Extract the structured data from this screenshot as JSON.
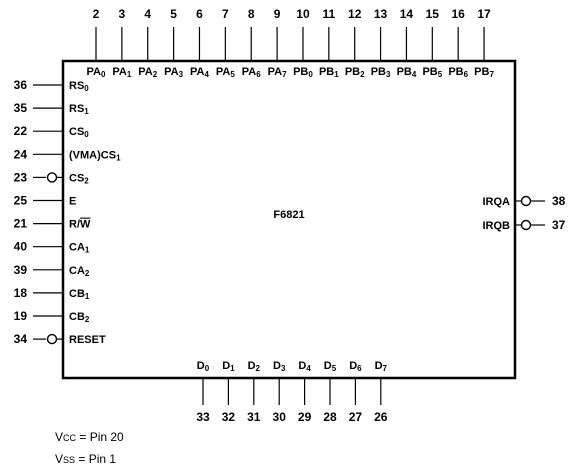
{
  "chip": {
    "name": "F6821"
  },
  "top_pins": [
    {
      "num": "2",
      "name": "PA",
      "sub": "0"
    },
    {
      "num": "3",
      "name": "PA",
      "sub": "1"
    },
    {
      "num": "4",
      "name": "PA",
      "sub": "2"
    },
    {
      "num": "5",
      "name": "PA",
      "sub": "3"
    },
    {
      "num": "6",
      "name": "PA",
      "sub": "4"
    },
    {
      "num": "7",
      "name": "PA",
      "sub": "5"
    },
    {
      "num": "8",
      "name": "PA",
      "sub": "6"
    },
    {
      "num": "9",
      "name": "PA",
      "sub": "7"
    },
    {
      "num": "10",
      "name": "PB",
      "sub": "0"
    },
    {
      "num": "11",
      "name": "PB",
      "sub": "1"
    },
    {
      "num": "12",
      "name": "PB",
      "sub": "2"
    },
    {
      "num": "13",
      "name": "PB",
      "sub": "3"
    },
    {
      "num": "14",
      "name": "PB",
      "sub": "4"
    },
    {
      "num": "15",
      "name": "PB",
      "sub": "5"
    },
    {
      "num": "16",
      "name": "PB",
      "sub": "6"
    },
    {
      "num": "17",
      "name": "PB",
      "sub": "7"
    }
  ],
  "left_pins": [
    {
      "num": "36",
      "name": "RS",
      "sub": "0",
      "bubble": false
    },
    {
      "num": "35",
      "name": "RS",
      "sub": "1",
      "bubble": false
    },
    {
      "num": "22",
      "name": "CS",
      "sub": "0",
      "bubble": false
    },
    {
      "num": "24",
      "name": "(VMA)CS",
      "sub": "1",
      "bubble": false
    },
    {
      "num": "23",
      "name": "CS",
      "sub": "2",
      "bubble": true
    },
    {
      "num": "25",
      "name": "E",
      "sub": "",
      "bubble": false
    },
    {
      "num": "21",
      "name": "R/",
      "over": "W",
      "sub": "",
      "bubble": false
    },
    {
      "num": "40",
      "name": "CA",
      "sub": "1",
      "bubble": false
    },
    {
      "num": "39",
      "name": "CA",
      "sub": "2",
      "bubble": false
    },
    {
      "num": "18",
      "name": "CB",
      "sub": "1",
      "bubble": false
    },
    {
      "num": "19",
      "name": "CB",
      "sub": "2",
      "bubble": false
    },
    {
      "num": "34",
      "name": "RESET",
      "sub": "",
      "bubble": true
    }
  ],
  "right_pins": [
    {
      "num": "38",
      "name": "IRQA",
      "bubble": true
    },
    {
      "num": "37",
      "name": "IRQB",
      "bubble": true
    }
  ],
  "bottom_pins": [
    {
      "num": "33",
      "name": "D",
      "sub": "0"
    },
    {
      "num": "32",
      "name": "D",
      "sub": "1"
    },
    {
      "num": "31",
      "name": "D",
      "sub": "2"
    },
    {
      "num": "30",
      "name": "D",
      "sub": "3"
    },
    {
      "num": "29",
      "name": "D",
      "sub": "4"
    },
    {
      "num": "28",
      "name": "D",
      "sub": "5"
    },
    {
      "num": "27",
      "name": "D",
      "sub": "6"
    },
    {
      "num": "26",
      "name": "D",
      "sub": "7"
    }
  ],
  "notes": {
    "vcc": {
      "name": "V",
      "sub": "CC",
      "text": " = Pin 20"
    },
    "vss": {
      "name": "V",
      "sub": "SS",
      "text": " = Pin 1"
    }
  }
}
